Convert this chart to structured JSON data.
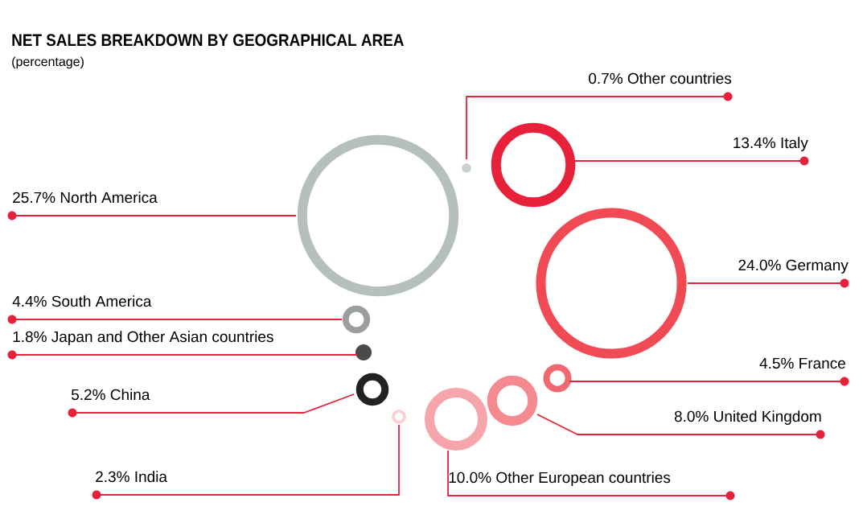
{
  "chart_data": {
    "type": "other",
    "title": "NET SALES BREAKDOWN BY GEOGRAPHICAL AREA",
    "subtitle": "(percentage)",
    "categories": [
      "Other countries",
      "Italy",
      "North America",
      "Germany",
      "South America",
      "Japan and Other Asian countries",
      "France",
      "China",
      "United Kingdom",
      "India",
      "Other European countries"
    ],
    "values": [
      0.7,
      13.4,
      25.7,
      24.0,
      4.4,
      1.8,
      4.5,
      5.2,
      8.0,
      2.3,
      10.0
    ],
    "value_labels": [
      "0.7%",
      "13.4%",
      "25.7%",
      "24.0%",
      "4.4%",
      "1.8%",
      "4.5%",
      "5.2%",
      "8.0%",
      "2.3%",
      "10.0%"
    ],
    "colors": [
      "#c9d1cd",
      "#e8213a",
      "#b5bfbb",
      "#f04a55",
      "#9a9e9c",
      "#4a4a4a",
      "#f06870",
      "#222222",
      "#f48a8f",
      "#fad0d4",
      "#f6a6aa"
    ]
  }
}
